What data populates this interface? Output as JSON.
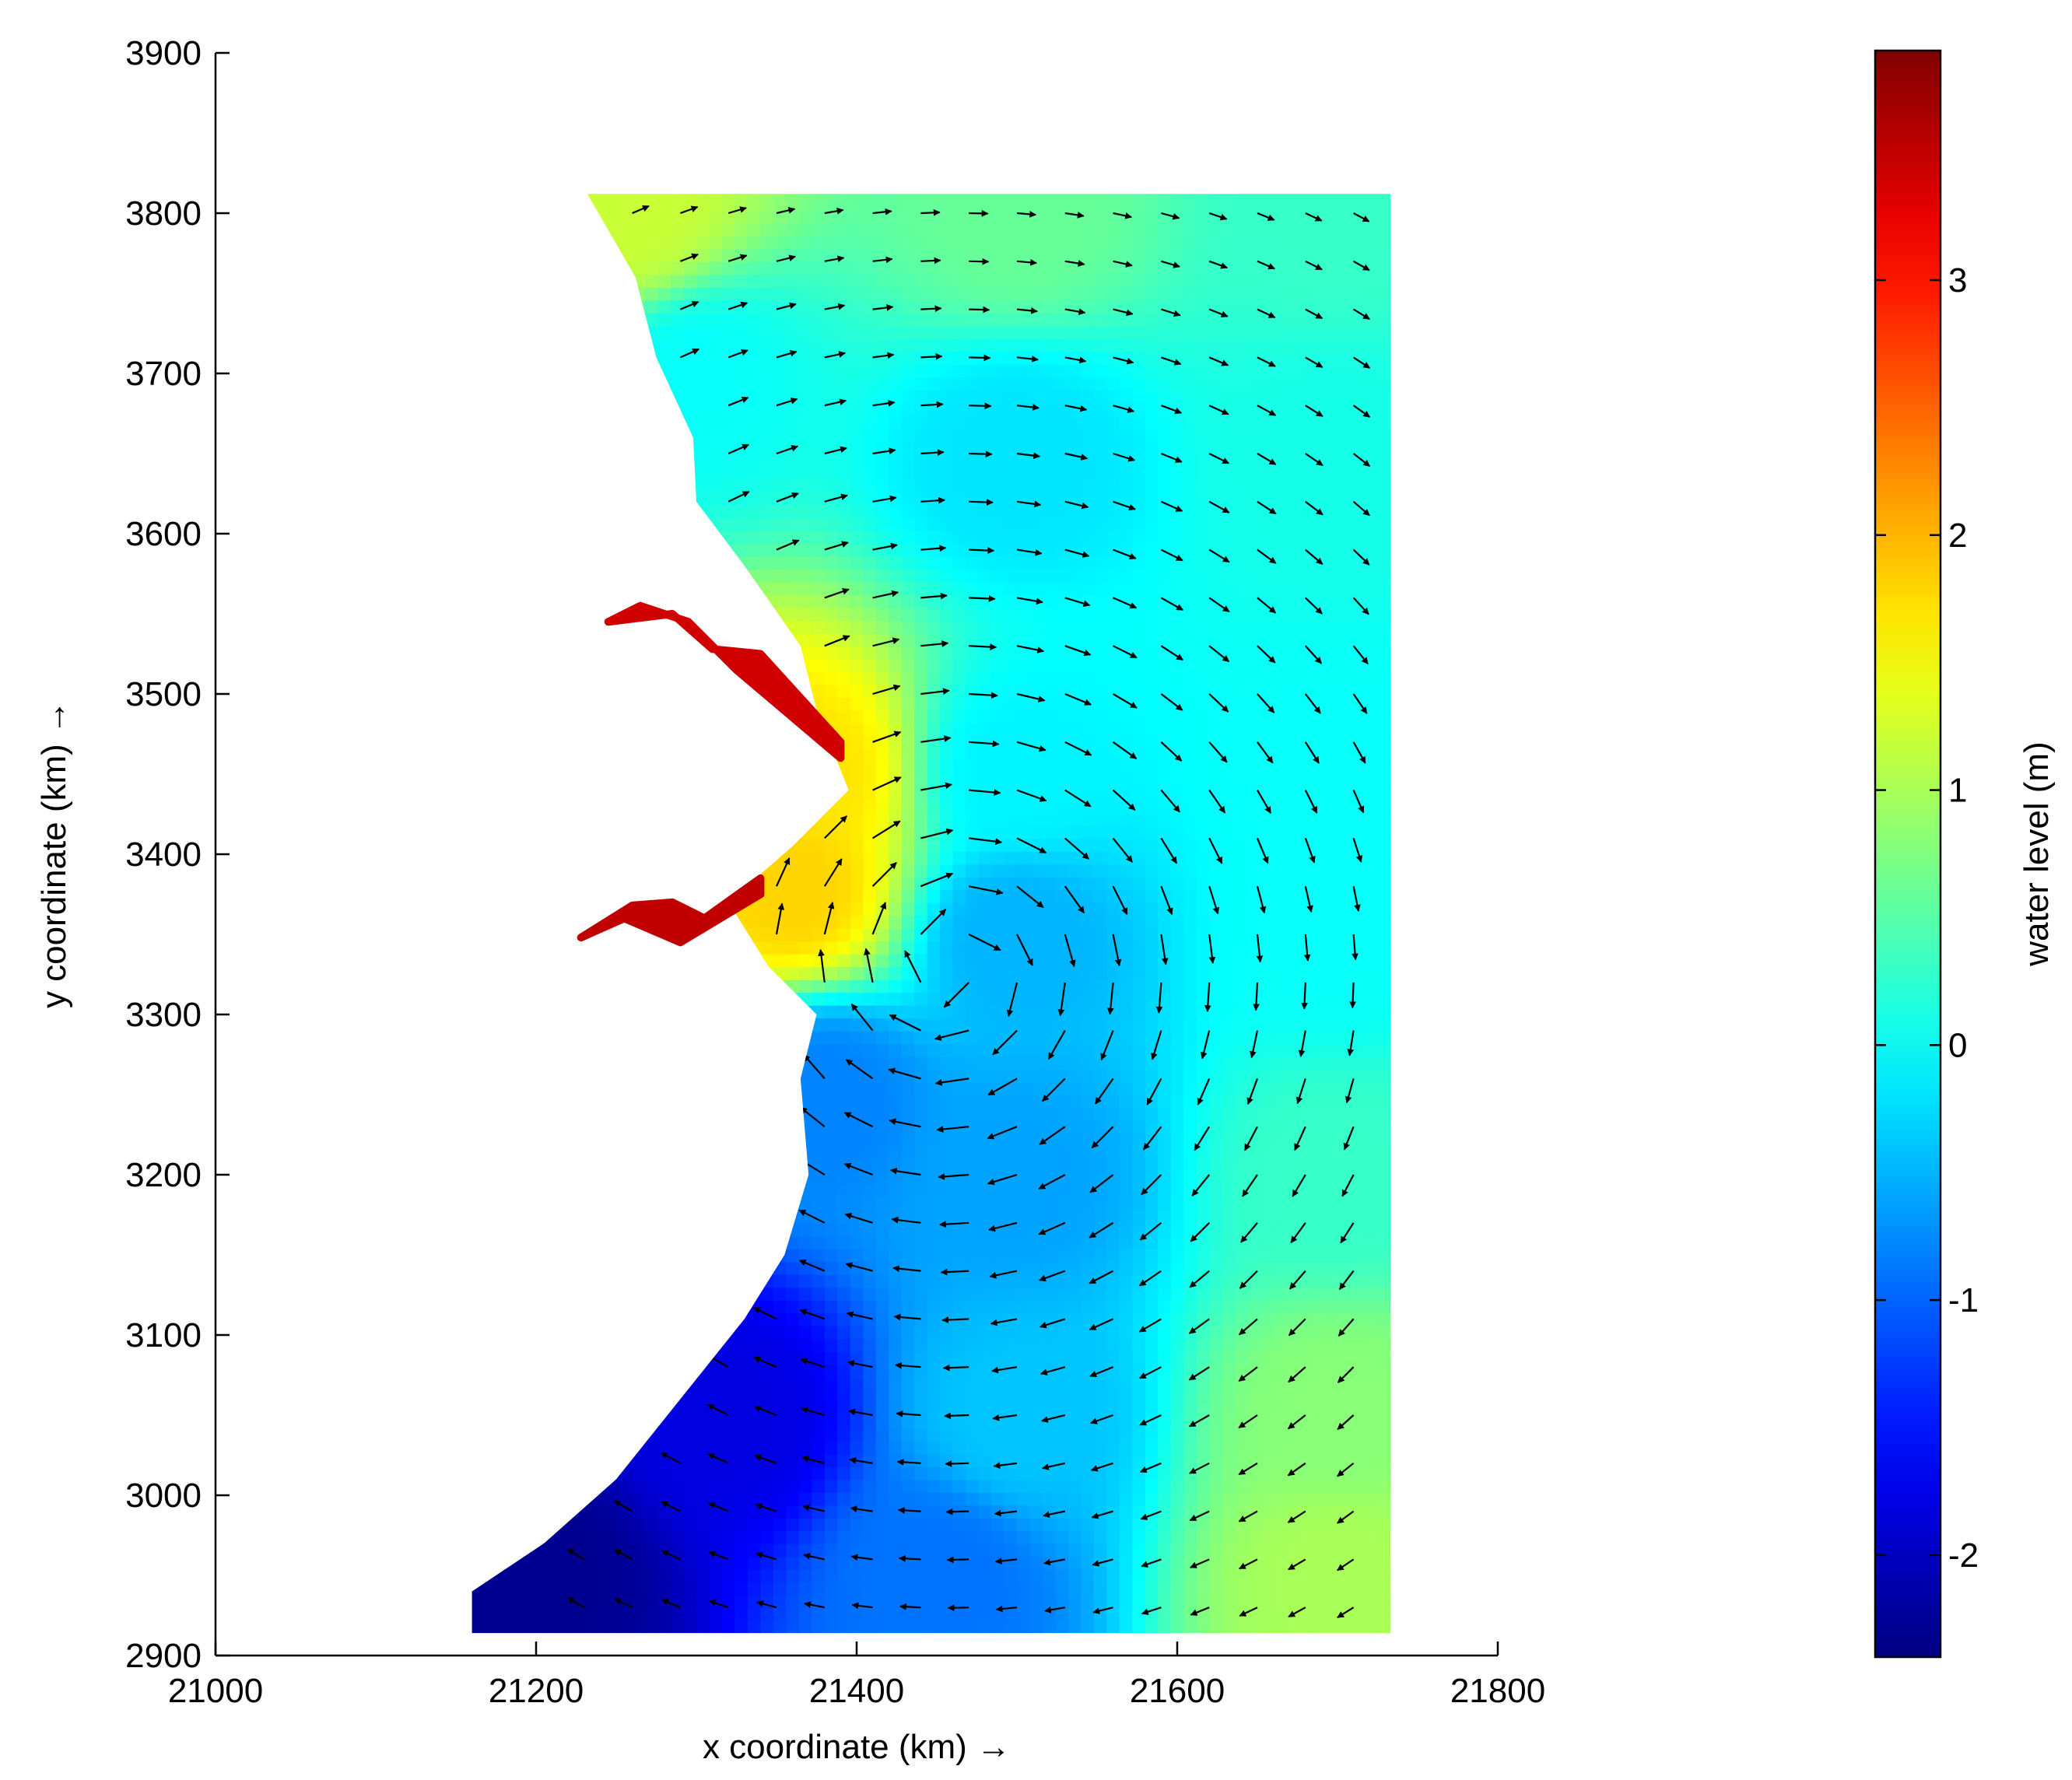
{
  "chart_data": {
    "type": "heatmap",
    "subtype": "water level field with current vectors (quiver)",
    "title": "",
    "xlabel": "x coordinate (km) →",
    "ylabel": "y coordinate (km) →",
    "xlim": [
      21000,
      21800
    ],
    "ylim": [
      2900,
      3900
    ],
    "x_ticks": [
      21000,
      21200,
      21400,
      21600,
      21800
    ],
    "y_ticks": [
      2900,
      3000,
      3100,
      3200,
      3300,
      3400,
      3500,
      3600,
      3700,
      3800,
      3900
    ],
    "grid": false,
    "colorbar": {
      "label": "water level (m)",
      "range": [
        -2.4,
        3.9
      ],
      "ticks": [
        -2,
        -1,
        0,
        1,
        2,
        3
      ],
      "colormap": "jet",
      "colors": [
        "#00008f",
        "#0000ff",
        "#00ffff",
        "#ffff00",
        "#ff0000",
        "#800000"
      ]
    },
    "domain_extent": {
      "x_east": 21733,
      "y_south": 2914,
      "y_north": 3812
    },
    "coastline_west_edge": [
      {
        "y": 3812,
        "x": 21232
      },
      {
        "y": 3760,
        "x": 21262
      },
      {
        "y": 3710,
        "x": 21275
      },
      {
        "y": 3660,
        "x": 21298
      },
      {
        "y": 3620,
        "x": 21300
      },
      {
        "y": 3580,
        "x": 21330
      },
      {
        "y": 3530,
        "x": 21365
      },
      {
        "y": 3490,
        "x": 21375
      },
      {
        "y": 3440,
        "x": 21395
      },
      {
        "y": 3405,
        "x": 21360
      },
      {
        "y": 3370,
        "x": 21320
      },
      {
        "y": 3330,
        "x": 21345
      },
      {
        "y": 3300,
        "x": 21375
      },
      {
        "y": 3260,
        "x": 21365
      },
      {
        "y": 3200,
        "x": 21370
      },
      {
        "y": 3150,
        "x": 21355
      },
      {
        "y": 3110,
        "x": 21330
      },
      {
        "y": 3060,
        "x": 21290
      },
      {
        "y": 3010,
        "x": 21250
      },
      {
        "y": 2970,
        "x": 21205
      },
      {
        "y": 2940,
        "x": 21160
      },
      {
        "y": 2914,
        "x": 21160
      }
    ],
    "estuaries": [
      {
        "name": "",
        "level_m": 3.4,
        "path": [
          [
            21390,
            3470
          ],
          [
            21340,
            3525
          ],
          [
            21310,
            3528
          ],
          [
            21285,
            3550
          ],
          [
            21245,
            3545
          ],
          [
            21265,
            3555
          ],
          [
            21295,
            3545
          ],
          [
            21325,
            3515
          ],
          [
            21390,
            3460
          ]
        ]
      },
      {
        "name": "",
        "level_m": 3.5,
        "path": [
          [
            21340,
            3385
          ],
          [
            21305,
            3360
          ],
          [
            21285,
            3370
          ],
          [
            21260,
            3368
          ],
          [
            21228,
            3348
          ],
          [
            21255,
            3360
          ],
          [
            21290,
            3345
          ],
          [
            21340,
            3375
          ]
        ]
      }
    ],
    "level_field_points": [
      {
        "x": 21260,
        "y": 3800,
        "level": 1.2
      },
      {
        "x": 21500,
        "y": 3800,
        "level": 0.6
      },
      {
        "x": 21700,
        "y": 3800,
        "level": 0.3
      },
      {
        "x": 21300,
        "y": 3700,
        "level": 0.0
      },
      {
        "x": 21500,
        "y": 3650,
        "level": -0.2
      },
      {
        "x": 21700,
        "y": 3650,
        "level": 0.1
      },
      {
        "x": 21370,
        "y": 3450,
        "level": 1.7
      },
      {
        "x": 21500,
        "y": 3450,
        "level": -0.1
      },
      {
        "x": 21700,
        "y": 3450,
        "level": 0.0
      },
      {
        "x": 21360,
        "y": 3380,
        "level": 1.8
      },
      {
        "x": 21500,
        "y": 3350,
        "level": -0.5
      },
      {
        "x": 21700,
        "y": 3350,
        "level": 0.0
      },
      {
        "x": 21380,
        "y": 3250,
        "level": -0.8
      },
      {
        "x": 21500,
        "y": 3200,
        "level": -0.6
      },
      {
        "x": 21700,
        "y": 3200,
        "level": 0.3
      },
      {
        "x": 21320,
        "y": 3050,
        "level": -1.8
      },
      {
        "x": 21500,
        "y": 3050,
        "level": -0.4
      },
      {
        "x": 21700,
        "y": 3050,
        "level": 0.8
      },
      {
        "x": 21200,
        "y": 2950,
        "level": -2.3
      },
      {
        "x": 21450,
        "y": 2950,
        "level": -0.9
      },
      {
        "x": 21700,
        "y": 2950,
        "level": 1.0
      }
    ]
  }
}
